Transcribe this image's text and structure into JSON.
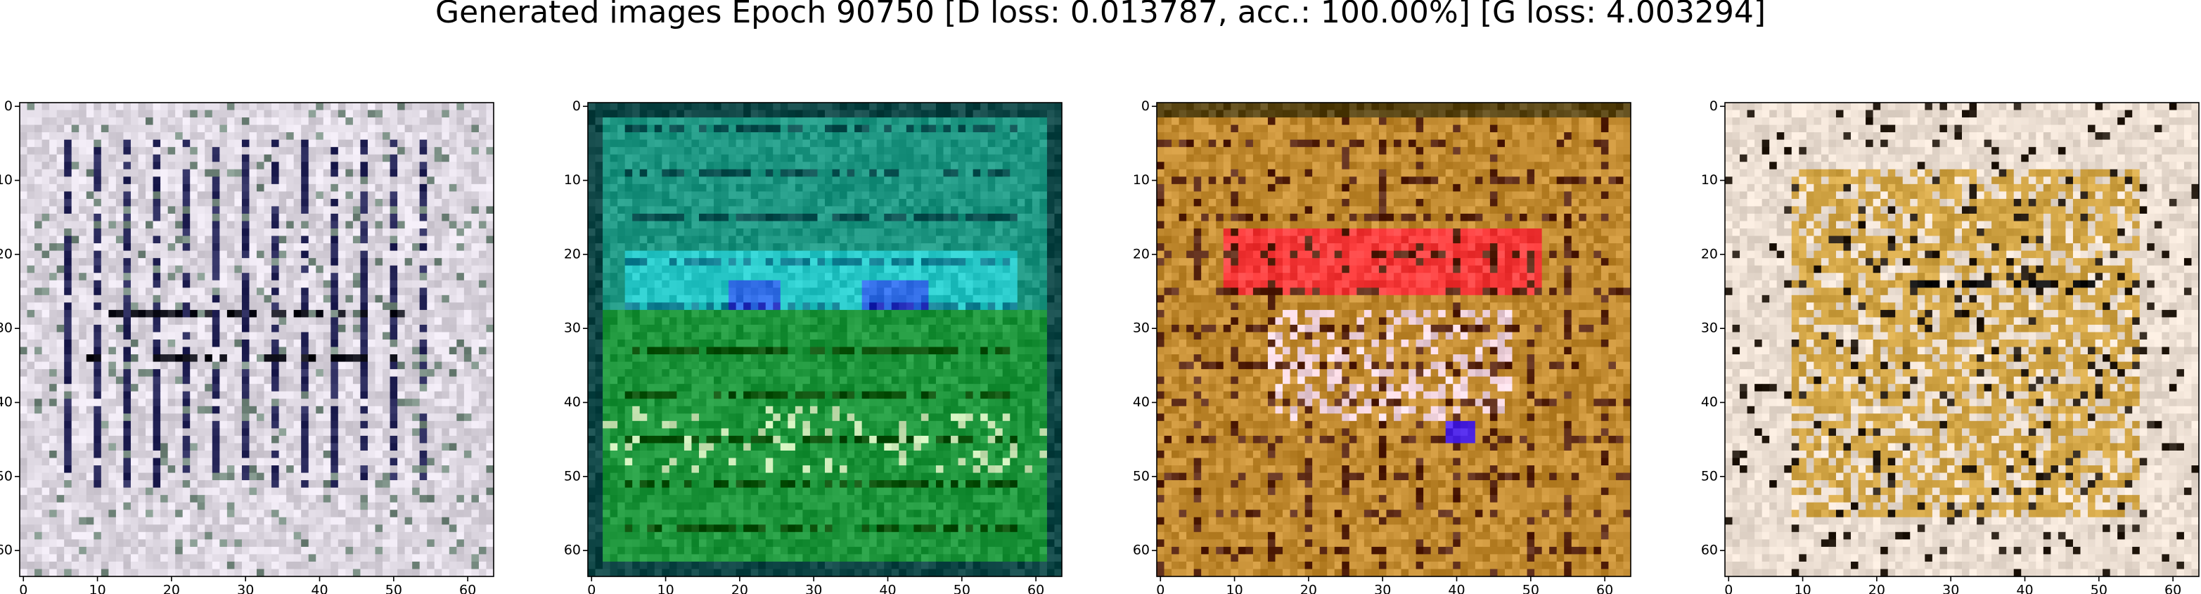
{
  "title": "Generated images Epoch 90750 [D loss: 0.013787, acc.: 100.00%] [G loss: 4.003294]",
  "chart_data": [
    {
      "type": "image",
      "xlim": [
        -0.5,
        63.5
      ],
      "ylim": [
        63.5,
        -0.5
      ],
      "xticks": [
        0,
        10,
        20,
        30,
        40,
        50,
        60
      ],
      "yticks": [
        0,
        10,
        20,
        30,
        40,
        50,
        60
      ]
    },
    {
      "type": "image",
      "xlim": [
        -0.5,
        63.5
      ],
      "ylim": [
        63.5,
        -0.5
      ],
      "xticks": [
        0,
        10,
        20,
        30,
        40,
        50,
        60
      ],
      "yticks": [
        0,
        10,
        20,
        30,
        40,
        50,
        60
      ]
    },
    {
      "type": "image",
      "xlim": [
        -0.5,
        63.5
      ],
      "ylim": [
        63.5,
        -0.5
      ],
      "xticks": [
        0,
        10,
        20,
        30,
        40,
        50,
        60
      ],
      "yticks": [
        0,
        10,
        20,
        30,
        40,
        50,
        60
      ]
    },
    {
      "type": "image",
      "xlim": [
        -0.5,
        63.5
      ],
      "ylim": [
        63.5,
        -0.5
      ],
      "xticks": [
        0,
        10,
        20,
        30,
        40,
        50,
        60
      ],
      "yticks": [
        0,
        10,
        20,
        30,
        40,
        50,
        60
      ]
    }
  ]
}
